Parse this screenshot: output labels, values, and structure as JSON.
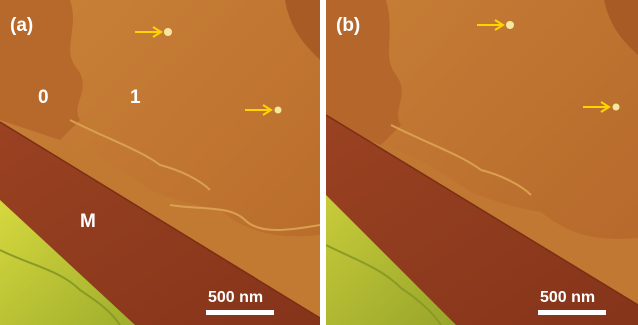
{
  "figure": {
    "panels": [
      {
        "label": "(a)",
        "regions": [
          "0",
          "1",
          "M"
        ],
        "scale_bar": "500 nm",
        "arrows": 2
      },
      {
        "label": "(b)",
        "scale_bar": "500 nm",
        "arrows": 2
      }
    ],
    "colors": {
      "terrace_upper": "#c0782e",
      "terrace_lower": "#b4662a",
      "strip_dark": "#8e3a1e",
      "substrate_green": "#c9cf3a",
      "arrow": "#ffd400",
      "feature": "#f4e7a0"
    },
    "arrow_icon": "arrow-right-icon"
  }
}
